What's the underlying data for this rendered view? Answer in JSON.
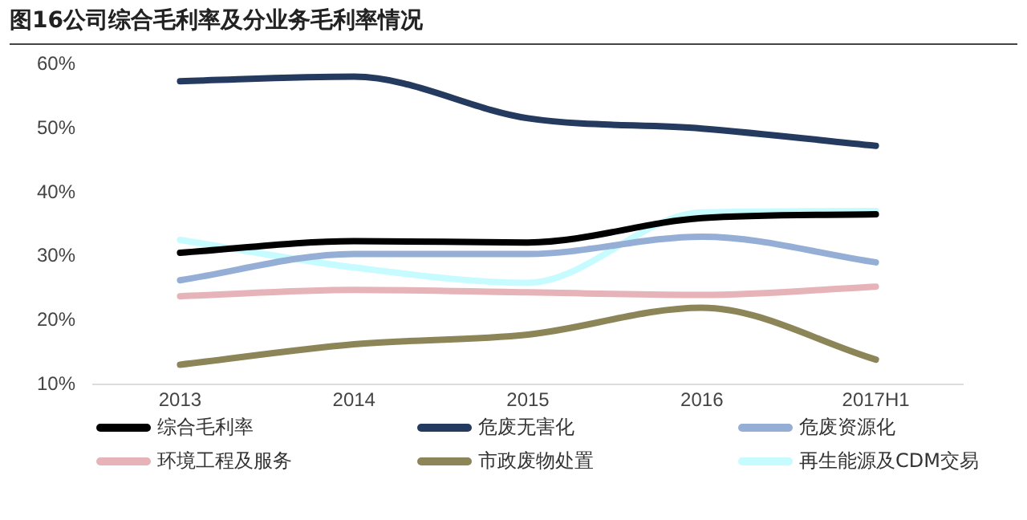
{
  "chart_data": {
    "type": "line",
    "title": "图16公司综合毛利率及分业务毛利率情况",
    "categories": [
      "2013",
      "2014",
      "2015",
      "2016",
      "2017H1"
    ],
    "series": [
      {
        "name": "综合毛利率",
        "color": "#000000",
        "values": [
          30.6,
          32.4,
          32.2,
          36,
          36.6
        ]
      },
      {
        "name": "危废无害化",
        "color": "#243a5e",
        "values": [
          57.4,
          58.1,
          51.6,
          50,
          47.3
        ]
      },
      {
        "name": "危废资源化",
        "color": "#95aed5",
        "values": [
          26.3,
          30.4,
          30.4,
          33.1,
          29.1
        ]
      },
      {
        "name": "环境工程及服务",
        "color": "#e6b3b8",
        "values": [
          23.8,
          24.8,
          24.4,
          24,
          25.3
        ]
      },
      {
        "name": "市政废物处置",
        "color": "#8c8558",
        "values": [
          13.1,
          16.3,
          17.8,
          22,
          13.9
        ]
      },
      {
        "name": "再生能源及CDM交易",
        "color": "#c6fbff",
        "values": [
          32.6,
          28.3,
          25.9,
          36.9,
          37.1
        ]
      }
    ],
    "ylim": [
      10,
      60
    ],
    "yticks": [
      {
        "value": 10,
        "label": "10%"
      },
      {
        "value": 20,
        "label": "20%"
      },
      {
        "value": 30,
        "label": "30%"
      },
      {
        "value": 40,
        "label": "40%"
      },
      {
        "value": 50,
        "label": "50%"
      },
      {
        "value": 60,
        "label": "60%"
      }
    ],
    "grid": false,
    "legend": "bottom",
    "line_style": "solid",
    "marker": "none"
  }
}
